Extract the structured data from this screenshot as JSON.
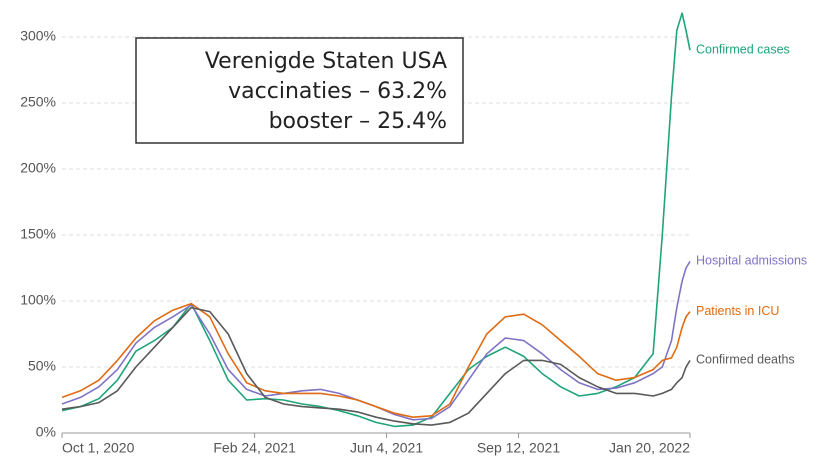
{
  "chart_data": {
    "type": "line",
    "annotations": [
      "Verenigde Staten USA",
      "vaccinaties – 63.2%",
      "booster – 25.4%"
    ],
    "x": [
      "2020-10-01",
      "2020-10-15",
      "2020-10-29",
      "2020-11-12",
      "2020-11-26",
      "2020-12-10",
      "2020-12-24",
      "2021-01-07",
      "2021-01-21",
      "2021-02-04",
      "2021-02-18",
      "2021-03-04",
      "2021-03-18",
      "2021-04-01",
      "2021-04-15",
      "2021-04-29",
      "2021-05-13",
      "2021-05-27",
      "2021-06-10",
      "2021-06-24",
      "2021-07-08",
      "2021-07-22",
      "2021-08-05",
      "2021-08-19",
      "2021-09-02",
      "2021-09-16",
      "2021-09-30",
      "2021-10-14",
      "2021-10-28",
      "2021-11-11",
      "2021-11-25",
      "2021-12-09",
      "2021-12-23",
      "2021-12-30",
      "2022-01-06",
      "2022-01-10",
      "2022-01-14",
      "2022-01-17",
      "2022-01-20"
    ],
    "series": [
      {
        "name": "Confirmed cases",
        "color": "#1fa47b",
        "values": [
          17,
          20,
          26,
          40,
          62,
          70,
          80,
          98,
          70,
          40,
          25,
          26,
          25,
          22,
          20,
          17,
          13,
          8,
          5,
          6,
          12,
          30,
          48,
          58,
          65,
          58,
          45,
          35,
          28,
          30,
          35,
          42,
          60,
          150,
          255,
          305,
          318,
          305,
          290
        ]
      },
      {
        "name": "Hospital admissions",
        "color": "#7f73c6",
        "values": [
          22,
          27,
          35,
          48,
          68,
          80,
          88,
          97,
          75,
          48,
          33,
          28,
          30,
          32,
          33,
          30,
          25,
          20,
          14,
          10,
          11,
          20,
          40,
          60,
          72,
          70,
          60,
          48,
          38,
          33,
          34,
          38,
          45,
          50,
          70,
          95,
          115,
          125,
          130
        ]
      },
      {
        "name": "Patients in ICU",
        "color": "#e06b12",
        "values": [
          27,
          32,
          40,
          55,
          72,
          85,
          93,
          98,
          88,
          60,
          38,
          32,
          30,
          30,
          30,
          28,
          25,
          20,
          15,
          12,
          13,
          22,
          50,
          75,
          88,
          90,
          82,
          70,
          58,
          45,
          40,
          42,
          48,
          55,
          57,
          65,
          80,
          88,
          92
        ]
      },
      {
        "name": "Confirmed deaths",
        "color": "#595959",
        "values": [
          18,
          20,
          23,
          32,
          50,
          65,
          80,
          95,
          92,
          75,
          45,
          27,
          22,
          20,
          19,
          18,
          16,
          12,
          9,
          7,
          6,
          8,
          15,
          30,
          45,
          55,
          55,
          52,
          42,
          35,
          30,
          30,
          28,
          30,
          33,
          38,
          42,
          50,
          55
        ]
      }
    ],
    "xlim": [
      "2020-10-01",
      "2022-01-20"
    ],
    "xticks": [
      {
        "value": "2020-10-01",
        "label": "Oct 1, 2020"
      },
      {
        "value": "2021-02-24",
        "label": "Feb 24, 2021"
      },
      {
        "value": "2021-06-04",
        "label": "Jun 4, 2021"
      },
      {
        "value": "2021-09-12",
        "label": "Sep 12, 2021"
      },
      {
        "value": "2022-01-20",
        "label": "Jan 20, 2022"
      }
    ],
    "ylim": [
      0,
      320
    ],
    "yticks": [
      {
        "value": 0,
        "label": "0%"
      },
      {
        "value": 50,
        "label": "50%"
      },
      {
        "value": 100,
        "label": "100%"
      },
      {
        "value": 150,
        "label": "150%"
      },
      {
        "value": 200,
        "label": "200%"
      },
      {
        "value": 250,
        "label": "250%"
      },
      {
        "value": 300,
        "label": "300%"
      }
    ],
    "grid": true
  }
}
